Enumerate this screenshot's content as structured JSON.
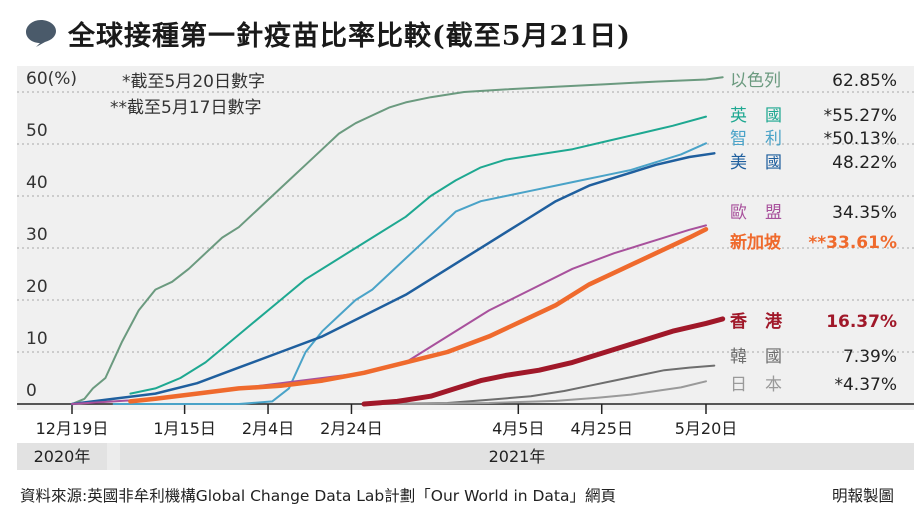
{
  "header": {
    "title": "全球接種第一針疫苗比率比較(截至5月21日)"
  },
  "notes": {
    "line1": "*截至5月20日數字",
    "line2": "**截至5月17日數字"
  },
  "years": {
    "left": "2020年",
    "right": "2021年"
  },
  "footer": {
    "source": "資料來源:英國非牟利機構Global Change Data Lab計劃「Our World in Data」網頁",
    "credit": "明報製圖"
  },
  "chart_data": {
    "type": "line",
    "title": "全球接種第一針疫苗比率比較(截至5月21日)",
    "ylabel": "(%)",
    "ylim": [
      0,
      62
    ],
    "yticks": [
      0,
      10,
      20,
      30,
      40,
      50,
      60
    ],
    "ytick_labels": [
      "0",
      "10",
      "20",
      "30",
      "40",
      "50",
      "60(%)"
    ],
    "x_ticks": [
      "12月19日",
      "1月15日",
      "2月4日",
      "2月24日",
      "4月5日",
      "4月25日",
      "5月20日"
    ],
    "x_tick_days": [
      0,
      27,
      47,
      67,
      107,
      127,
      152
    ],
    "x_unit": "days since 2020-12-19",
    "grid": true,
    "series": [
      {
        "name": "以色列",
        "value_label": "62.85%",
        "color": "#6b9a7f",
        "width": 2,
        "points": [
          [
            0,
            0
          ],
          [
            3,
            1
          ],
          [
            5,
            3
          ],
          [
            8,
            5
          ],
          [
            12,
            12
          ],
          [
            16,
            18
          ],
          [
            20,
            22
          ],
          [
            24,
            23.5
          ],
          [
            28,
            26
          ],
          [
            32,
            29
          ],
          [
            36,
            32
          ],
          [
            40,
            34
          ],
          [
            44,
            37
          ],
          [
            48,
            40
          ],
          [
            52,
            43
          ],
          [
            56,
            46
          ],
          [
            60,
            49
          ],
          [
            64,
            52
          ],
          [
            68,
            54
          ],
          [
            72,
            55.5
          ],
          [
            76,
            57
          ],
          [
            80,
            58
          ],
          [
            86,
            59
          ],
          [
            94,
            60
          ],
          [
            104,
            60.5
          ],
          [
            116,
            61
          ],
          [
            128,
            61.5
          ],
          [
            140,
            62
          ],
          [
            152,
            62.4
          ],
          [
            156,
            62.85
          ]
        ]
      },
      {
        "name": "英國",
        "value_label": "*55.27%",
        "color": "#1ea891",
        "width": 2,
        "points": [
          [
            14,
            2
          ],
          [
            20,
            3
          ],
          [
            26,
            5
          ],
          [
            32,
            8
          ],
          [
            38,
            12
          ],
          [
            44,
            16
          ],
          [
            50,
            20
          ],
          [
            56,
            24
          ],
          [
            62,
            27
          ],
          [
            68,
            30
          ],
          [
            74,
            33
          ],
          [
            80,
            36
          ],
          [
            86,
            40
          ],
          [
            92,
            43
          ],
          [
            98,
            45.5
          ],
          [
            104,
            47
          ],
          [
            112,
            48
          ],
          [
            120,
            49
          ],
          [
            128,
            50.5
          ],
          [
            136,
            52
          ],
          [
            144,
            53.5
          ],
          [
            152,
            55.27
          ]
        ]
      },
      {
        "name": "智利",
        "value_label": "*50.13%",
        "color": "#4aa3c8",
        "width": 2,
        "points": [
          [
            10,
            0
          ],
          [
            40,
            0
          ],
          [
            48,
            0.5
          ],
          [
            52,
            3
          ],
          [
            56,
            10
          ],
          [
            60,
            14
          ],
          [
            64,
            17
          ],
          [
            68,
            20
          ],
          [
            72,
            22
          ],
          [
            76,
            25
          ],
          [
            80,
            28
          ],
          [
            84,
            31
          ],
          [
            88,
            34
          ],
          [
            92,
            37
          ],
          [
            98,
            39
          ],
          [
            104,
            40
          ],
          [
            110,
            41
          ],
          [
            116,
            42
          ],
          [
            122,
            43
          ],
          [
            128,
            44
          ],
          [
            134,
            45
          ],
          [
            140,
            46.5
          ],
          [
            146,
            48
          ],
          [
            152,
            50.13
          ]
        ]
      },
      {
        "name": "美國",
        "value_label": "48.22%",
        "color": "#1f5f9e",
        "width": 2.5,
        "points": [
          [
            0,
            0
          ],
          [
            10,
            1
          ],
          [
            20,
            2
          ],
          [
            30,
            4
          ],
          [
            40,
            7
          ],
          [
            50,
            10
          ],
          [
            60,
            13
          ],
          [
            70,
            17
          ],
          [
            80,
            21
          ],
          [
            90,
            26
          ],
          [
            100,
            31
          ],
          [
            108,
            35
          ],
          [
            116,
            39
          ],
          [
            124,
            42
          ],
          [
            132,
            44
          ],
          [
            140,
            46
          ],
          [
            148,
            47.5
          ],
          [
            154,
            48.22
          ]
        ]
      },
      {
        "name": "歐盟",
        "value_label": "34.35%",
        "color": "#a8519c",
        "width": 2,
        "points": [
          [
            0,
            0
          ],
          [
            10,
            0.5
          ],
          [
            20,
            1
          ],
          [
            30,
            2
          ],
          [
            40,
            3
          ],
          [
            50,
            4
          ],
          [
            60,
            5
          ],
          [
            70,
            6
          ],
          [
            80,
            8
          ],
          [
            90,
            13
          ],
          [
            100,
            18
          ],
          [
            110,
            22
          ],
          [
            120,
            26
          ],
          [
            130,
            29
          ],
          [
            140,
            31.5
          ],
          [
            148,
            33.5
          ],
          [
            152,
            34.35
          ]
        ]
      },
      {
        "name": "新加坡",
        "value_label": "**33.61%",
        "color": "#ef6a2d",
        "width": 4.5,
        "emphasis": true,
        "points": [
          [
            14,
            0.5
          ],
          [
            20,
            1
          ],
          [
            30,
            2
          ],
          [
            40,
            3
          ],
          [
            50,
            3.5
          ],
          [
            60,
            4.5
          ],
          [
            70,
            6
          ],
          [
            80,
            8
          ],
          [
            90,
            10
          ],
          [
            100,
            13
          ],
          [
            108,
            16
          ],
          [
            116,
            19
          ],
          [
            124,
            23
          ],
          [
            132,
            26
          ],
          [
            140,
            29
          ],
          [
            148,
            32
          ],
          [
            152,
            33.61
          ]
        ]
      },
      {
        "name": "香港",
        "value_label": "16.37%",
        "color": "#a01829",
        "width": 5,
        "emphasis": true,
        "points": [
          [
            70,
            0
          ],
          [
            78,
            0.5
          ],
          [
            86,
            1.5
          ],
          [
            92,
            3
          ],
          [
            98,
            4.5
          ],
          [
            104,
            5.5
          ],
          [
            112,
            6.5
          ],
          [
            120,
            8
          ],
          [
            128,
            10
          ],
          [
            136,
            12
          ],
          [
            144,
            14
          ],
          [
            152,
            15.5
          ],
          [
            156,
            16.37
          ]
        ]
      },
      {
        "name": "韓國",
        "value_label": "7.39%",
        "color": "#6e6e6e",
        "width": 2,
        "points": [
          [
            72,
            0
          ],
          [
            90,
            0.2
          ],
          [
            100,
            0.8
          ],
          [
            110,
            1.5
          ],
          [
            118,
            2.5
          ],
          [
            124,
            3.5
          ],
          [
            130,
            4.5
          ],
          [
            136,
            5.5
          ],
          [
            142,
            6.5
          ],
          [
            148,
            7
          ],
          [
            154,
            7.39
          ]
        ]
      },
      {
        "name": "日本",
        "value_label": "*4.37%",
        "color": "#9a9a9a",
        "width": 2,
        "points": [
          [
            72,
            0
          ],
          [
            100,
            0.2
          ],
          [
            116,
            0.6
          ],
          [
            126,
            1.2
          ],
          [
            134,
            1.8
          ],
          [
            140,
            2.5
          ],
          [
            146,
            3.2
          ],
          [
            152,
            4.37
          ]
        ]
      }
    ]
  }
}
